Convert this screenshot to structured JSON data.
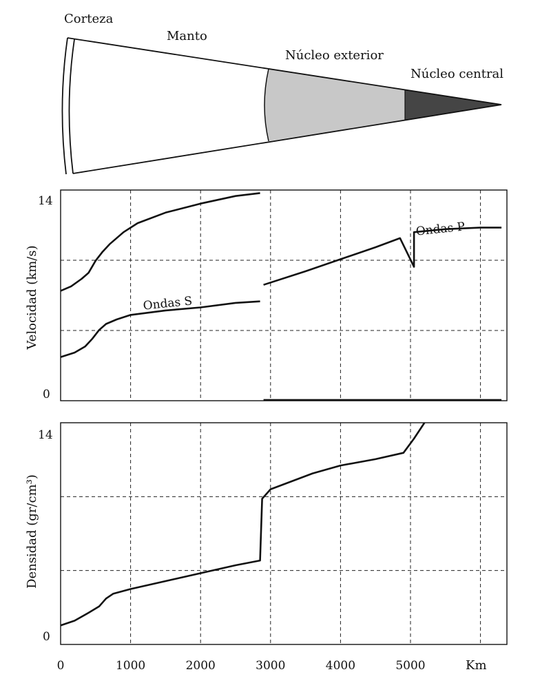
{
  "layers": {
    "corteza": "Corteza",
    "manto": "Manto",
    "nucleo_exterior": "Núcleo exterior",
    "nucleo_central": "Núcleo central"
  },
  "colors": {
    "outer_core_fill": "#c8c8c8",
    "inner_core_fill": "#454545",
    "line": "#111111",
    "grid": "#222222"
  },
  "chart_data": [
    {
      "type": "line",
      "title": "",
      "xlabel": "",
      "ylabel": "Velocidad (km/s)",
      "xlim": [
        0,
        6300
      ],
      "ylim": [
        0,
        14
      ],
      "grid": true,
      "y_tick_labels": [
        "0",
        "14"
      ],
      "series": [
        {
          "name": "Ondas P",
          "segments": [
            [
              [
                0,
                7.3
              ],
              [
                150,
                7.6
              ],
              [
                300,
                8.1
              ],
              [
                400,
                8.5
              ],
              [
                500,
                9.3
              ],
              [
                600,
                9.9
              ],
              [
                700,
                10.4
              ],
              [
                900,
                11.2
              ],
              [
                1100,
                11.8
              ],
              [
                1500,
                12.5
              ],
              [
                2000,
                13.1
              ],
              [
                2500,
                13.6
              ],
              [
                2850,
                13.8
              ]
            ],
            [
              [
                2900,
                7.7
              ],
              [
                3500,
                8.6
              ],
              [
                4000,
                9.4
              ],
              [
                4500,
                10.2
              ],
              [
                4850,
                10.8
              ],
              [
                5050,
                8.9
              ],
              [
                5050,
                11.2
              ],
              [
                5500,
                11.4
              ],
              [
                6000,
                11.5
              ],
              [
                6300,
                11.5
              ]
            ]
          ]
        },
        {
          "name": "Ondas S",
          "segments": [
            [
              [
                0,
                2.9
              ],
              [
                200,
                3.2
              ],
              [
                350,
                3.6
              ],
              [
                450,
                4.1
              ],
              [
                550,
                4.7
              ],
              [
                650,
                5.1
              ],
              [
                800,
                5.4
              ],
              [
                1000,
                5.7
              ],
              [
                1500,
                6.0
              ],
              [
                2000,
                6.2
              ],
              [
                2500,
                6.5
              ],
              [
                2850,
                6.6
              ]
            ],
            [
              [
                2900,
                0.05
              ],
              [
                5000,
                0.05
              ],
              [
                6300,
                0.05
              ]
            ]
          ]
        }
      ]
    },
    {
      "type": "line",
      "title": "",
      "xlabel": "Km",
      "ylabel": "Densidad (gr/cm³)",
      "xlim": [
        0,
        6300
      ],
      "ylim": [
        0,
        14
      ],
      "grid": true,
      "x_tick_labels": [
        "0",
        "1000",
        "2000",
        "3000",
        "4000",
        "5000"
      ],
      "y_tick_labels": [
        "0",
        "14"
      ],
      "series": [
        {
          "name": "",
          "segments": [
            [
              [
                0,
                1.2
              ],
              [
                200,
                1.5
              ],
              [
                400,
                2.0
              ],
              [
                550,
                2.4
              ],
              [
                650,
                2.9
              ],
              [
                750,
                3.2
              ],
              [
                1000,
                3.5
              ],
              [
                1500,
                4.0
              ],
              [
                2000,
                4.5
              ],
              [
                2500,
                5.0
              ],
              [
                2850,
                5.3
              ],
              [
                2880,
                9.2
              ],
              [
                3000,
                9.8
              ],
              [
                3300,
                10.3
              ],
              [
                3600,
                10.8
              ],
              [
                4000,
                11.3
              ],
              [
                4500,
                11.7
              ],
              [
                4900,
                12.1
              ],
              [
                5050,
                13.0
              ],
              [
                5200,
                14.0
              ]
            ]
          ]
        }
      ]
    }
  ]
}
